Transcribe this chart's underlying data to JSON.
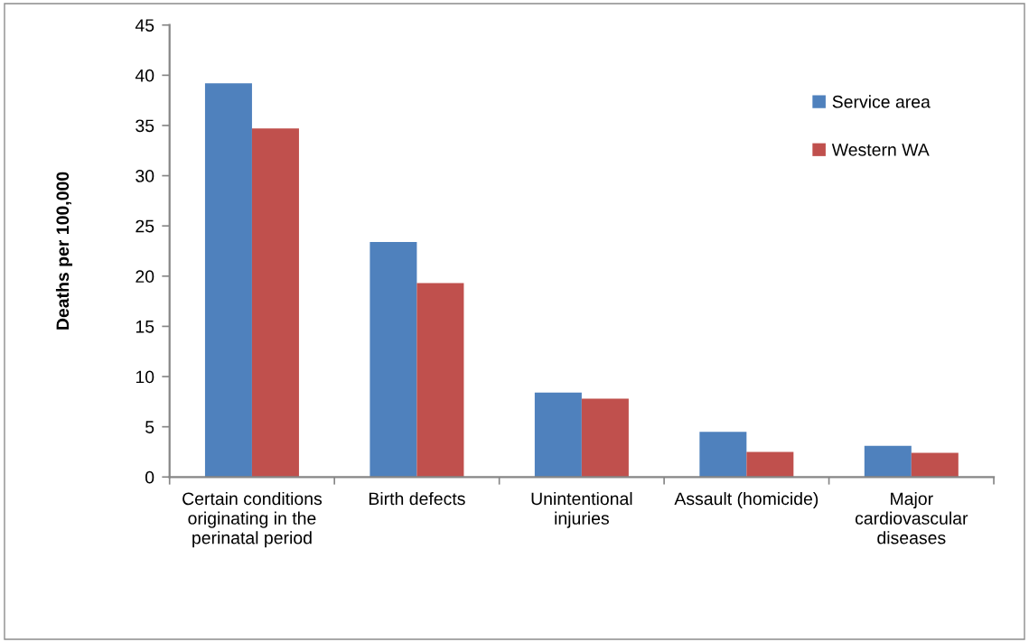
{
  "chart_data": {
    "type": "bar",
    "ylabel": "Deaths per 100,000",
    "categories": [
      "Certain conditions originating in the perinatal period",
      "Birth defects",
      "Unintentional injuries",
      "Assault (homicide)",
      "Major cardiovascular diseases"
    ],
    "series": [
      {
        "name": "Service area",
        "color": "#4f81bd",
        "values": [
          39.2,
          23.4,
          8.4,
          4.5,
          3.1
        ]
      },
      {
        "name": "Western WA",
        "color": "#c0504d",
        "values": [
          34.7,
          19.3,
          7.8,
          2.5,
          2.4
        ]
      }
    ],
    "ylim": [
      0,
      45
    ],
    "yticks": [
      0,
      5,
      10,
      15,
      20,
      25,
      30,
      35,
      40,
      45
    ],
    "grid": false,
    "legend": "top right"
  }
}
